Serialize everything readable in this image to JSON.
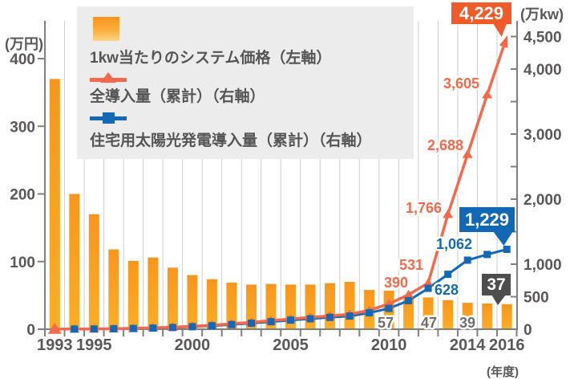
{
  "legend": {
    "items": [
      {
        "id": "price",
        "label": "1kw当たりのシステム価格（左軸）"
      },
      {
        "id": "total",
        "label": "全導入量（累計）（右軸）"
      },
      {
        "id": "residential",
        "label": "住宅用太陽光発電導入量（累計）（右軸）"
      }
    ]
  },
  "colors": {
    "bar_top": "#F8961C",
    "bar_bottom": "#FBAD25",
    "total_line": "#F4694B",
    "residential_line": "#1568B3",
    "callout_total_bg": "#F15A29",
    "callout_residential_bg": "#1268B3",
    "callout_price_bg": "#4D4D4D",
    "axis": "#7F7F7F",
    "grid": "#CDCDCD",
    "gray_text": "#595757",
    "price_label": "#6E6E6E"
  },
  "chart_data": {
    "type": "bar+line combo",
    "x": [
      1993,
      1994,
      1995,
      1996,
      1997,
      1998,
      1999,
      2000,
      2001,
      2002,
      2003,
      2004,
      2005,
      2006,
      2007,
      2008,
      2009,
      2010,
      2011,
      2012,
      2013,
      2014,
      2015,
      2016
    ],
    "x_axis": {
      "unit": "(年度)",
      "labeled_years": [
        {
          "year": 1993,
          "label": "1993"
        },
        {
          "year": 1995,
          "label": "1995"
        },
        {
          "year": 2000,
          "label": "2000"
        },
        {
          "year": 2005,
          "label": "2005"
        },
        {
          "year": 2010,
          "label": "2010"
        },
        {
          "year": 2014,
          "label": "2014"
        },
        {
          "year": 2016,
          "label": "2016"
        }
      ]
    },
    "left_axis": {
      "unit": "(万円)",
      "range": [
        0,
        400
      ],
      "ticks": [
        {
          "v": 400,
          "label": "400"
        },
        {
          "v": 300,
          "label": "300"
        },
        {
          "v": 200,
          "label": "200"
        },
        {
          "v": 100,
          "label": "100"
        },
        {
          "v": 0,
          "label": "0"
        }
      ]
    },
    "right_axis": {
      "unit": "(万kw)",
      "range": [
        0,
        4500
      ],
      "ticks": [
        {
          "v": 4500,
          "label": "4,500"
        },
        {
          "v": 4000,
          "label": "4,000"
        },
        {
          "v": 3500,
          "label": ""
        },
        {
          "v": 3000,
          "label": "3,000"
        },
        {
          "v": 2500,
          "label": ""
        },
        {
          "v": 2000,
          "label": "2,000"
        },
        {
          "v": 1500,
          "label": ""
        },
        {
          "v": 1000,
          "label": "1,000"
        },
        {
          "v": 500,
          "label": "500"
        },
        {
          "v": 0,
          "label": "0"
        }
      ]
    },
    "series": [
      {
        "id": "price",
        "name": "1kw当たりのシステム価格（左軸）",
        "type": "bar",
        "axis": "left",
        "values": [
          370,
          200,
          170,
          118,
          101,
          106,
          91,
          80,
          74,
          69,
          66,
          67,
          66,
          66,
          68,
          70,
          58,
          57,
          48,
          47,
          43,
          39,
          38,
          37
        ]
      },
      {
        "id": "total",
        "name": "全導入量（累計）（右軸）",
        "type": "line",
        "marker": "triangle",
        "axis": "right",
        "values": [
          2,
          3,
          5,
          8,
          13,
          21,
          31,
          45,
          62,
          83,
          106,
          132,
          158,
          183,
          205,
          230,
          290,
          390,
          531,
          710,
          1766,
          2688,
          3605,
          4229
        ]
      },
      {
        "id": "residential",
        "name": "住宅用太陽光発電導入量（累計）（右軸）",
        "type": "line",
        "marker": "square",
        "axis": "right",
        "values": [
          null,
          2,
          4,
          7,
          11,
          17,
          26,
          38,
          53,
          71,
          92,
          115,
          139,
          161,
          181,
          203,
          252,
          320,
          440,
          628,
          845,
          1062,
          1150,
          1229
        ]
      }
    ],
    "point_labels": [
      {
        "series": "total",
        "year": 2010,
        "text": "390"
      },
      {
        "series": "total",
        "year": 2011,
        "text": "531"
      },
      {
        "series": "total",
        "year": 2013,
        "text": "1,766"
      },
      {
        "series": "total",
        "year": 2014,
        "text": "2,688"
      },
      {
        "series": "total",
        "year": 2015,
        "text": "3,605"
      },
      {
        "series": "residential",
        "year": 2012,
        "text": "628"
      },
      {
        "series": "residential",
        "year": 2014,
        "text": "1,062"
      },
      {
        "series": "price",
        "year": 2010,
        "text": "57"
      },
      {
        "series": "price",
        "year": 2012,
        "text": "47"
      },
      {
        "series": "price",
        "year": 2014,
        "text": "39"
      }
    ],
    "callouts": [
      {
        "series": "total",
        "year": 2016,
        "text": "4,229"
      },
      {
        "series": "residential",
        "year": 2016,
        "text": "1,229"
      },
      {
        "series": "price",
        "year": 2016,
        "text": "37"
      }
    ],
    "layout_hints": {
      "grid": "vertical lines at year boundaries",
      "legend_position": "top-left",
      "total_line_end": "arrowhead"
    }
  }
}
